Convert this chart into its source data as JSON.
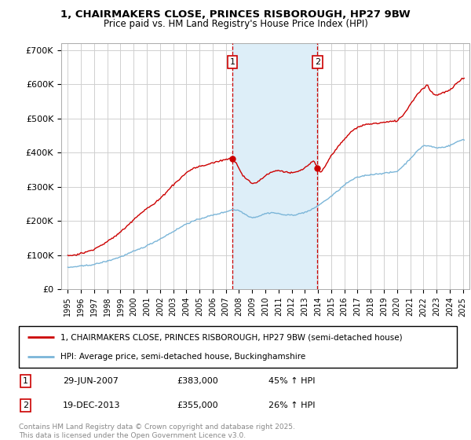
{
  "title_line1": "1, CHAIRMAKERS CLOSE, PRINCES RISBOROUGH, HP27 9BW",
  "title_line2": "Price paid vs. HM Land Registry's House Price Index (HPI)",
  "ylim": [
    0,
    720000
  ],
  "yticks": [
    0,
    100000,
    200000,
    300000,
    400000,
    500000,
    600000,
    700000
  ],
  "ytick_labels": [
    "£0",
    "£100K",
    "£200K",
    "£300K",
    "£400K",
    "£500K",
    "£600K",
    "£700K"
  ],
  "xlim_start": 1994.5,
  "xlim_end": 2025.5,
  "xticks": [
    1995,
    1996,
    1997,
    1998,
    1999,
    2000,
    2001,
    2002,
    2003,
    2004,
    2005,
    2006,
    2007,
    2008,
    2009,
    2010,
    2011,
    2012,
    2013,
    2014,
    2015,
    2016,
    2017,
    2018,
    2019,
    2020,
    2021,
    2022,
    2023,
    2024,
    2025
  ],
  "background_color": "#ffffff",
  "plot_bg_color": "#ffffff",
  "grid_color": "#d0d0d0",
  "sale1_x": 2007.49,
  "sale1_y": 383000,
  "sale2_x": 2013.96,
  "sale2_y": 355000,
  "shade_color": "#ddeef8",
  "dash_color": "#cc0000",
  "red_color": "#cc0000",
  "blue_color": "#7ab5d8",
  "legend_line1": "1, CHAIRMAKERS CLOSE, PRINCES RISBOROUGH, HP27 9BW (semi-detached house)",
  "legend_line2": "HPI: Average price, semi-detached house, Buckinghamshire",
  "footnote": "Contains HM Land Registry data © Crown copyright and database right 2025.\nThis data is licensed under the Open Government Licence v3.0.",
  "sale_table": [
    {
      "num": "1",
      "date": "29-JUN-2007",
      "price": "£383,000",
      "hpi": "45% ↑ HPI"
    },
    {
      "num": "2",
      "date": "19-DEC-2013",
      "price": "£355,000",
      "hpi": "26% ↑ HPI"
    }
  ]
}
